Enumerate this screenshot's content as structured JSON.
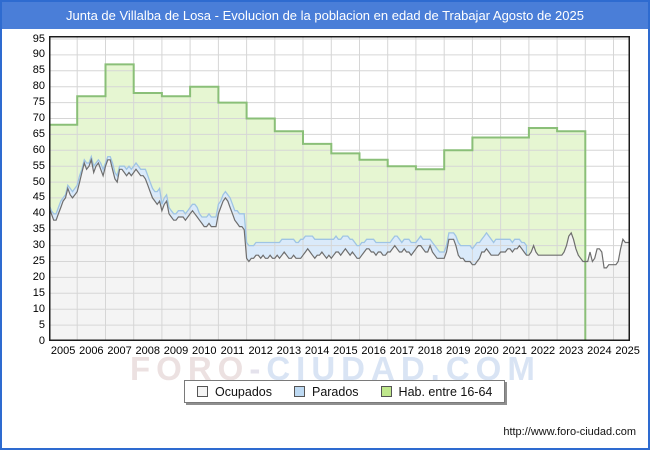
{
  "title": "Junta de Villalba de Losa - Evolucion de la poblacion en edad de Trabajar Agosto de 2025",
  "watermark": {
    "part1": "FORO",
    "separator": "-",
    "part2": "CIUDAD.COM"
  },
  "footer_url": "http://www.foro-ciudad.com",
  "colors": {
    "frame_border": "#2e6bd0",
    "titlebar_bg": "#4a7ed8",
    "titlebar_text": "#ffffff",
    "gridline": "#d6d6d6",
    "plot_border": "#1c1c1c",
    "ocupados_fill": "#f4f4f4",
    "ocupados_line": "#6e6e6e",
    "parados_fill": "#daeafa",
    "parados_line": "#9fc4e4",
    "hab_fill": "#e6f6d2",
    "hab_line": "#8abf78"
  },
  "legend": {
    "items": [
      {
        "label": "Ocupados",
        "swatch_color": "#f4f4f4"
      },
      {
        "label": "Parados",
        "swatch_color": "#bdd9f2"
      },
      {
        "label": "Hab. entre 16-64",
        "swatch_color": "#bfe78c"
      }
    ]
  },
  "chart_data": {
    "type": "area",
    "title": "Junta de Villalba de Losa - Evolucion de la poblacion en edad de Trabajar Agosto de 2025",
    "x_unit": "month",
    "x_start": "2005-01",
    "x_end": "2025-08",
    "x_tick_labels": [
      "2005",
      "2006",
      "2007",
      "2008",
      "2009",
      "2010",
      "2011",
      "2012",
      "2013",
      "2014",
      "2015",
      "2016",
      "2017",
      "2018",
      "2019",
      "2020",
      "2021",
      "2022",
      "2023",
      "2024",
      "2025"
    ],
    "y_ticks": [
      0,
      5,
      10,
      15,
      20,
      25,
      30,
      35,
      40,
      45,
      50,
      55,
      60,
      65,
      70,
      75,
      80,
      85,
      90,
      95
    ],
    "ylim": [
      0,
      96
    ],
    "grid": true,
    "legend_position": "bottom",
    "series": [
      {
        "name": "Ocupados",
        "render": "area",
        "start": "2005-01",
        "end": "2025-08",
        "values": [
          42,
          40,
          38,
          38,
          40,
          42,
          44,
          45,
          48,
          46,
          45,
          46,
          47,
          50,
          53,
          56,
          54,
          55,
          57,
          53,
          55,
          56,
          54,
          52,
          55,
          57,
          57,
          54,
          51,
          50,
          54,
          54,
          53,
          52,
          53,
          52,
          53,
          54,
          53,
          52,
          52,
          51,
          49,
          47,
          45,
          44,
          43,
          44,
          41,
          43,
          44,
          40,
          39,
          38,
          38,
          39,
          39,
          39,
          38,
          39,
          40,
          41,
          40,
          39,
          38,
          37,
          36,
          36,
          37,
          36,
          36,
          36,
          40,
          42,
          44,
          45,
          44,
          42,
          40,
          38,
          37,
          36,
          36,
          35,
          26,
          25,
          26,
          26,
          27,
          27,
          26,
          27,
          26,
          26,
          27,
          26,
          26,
          27,
          26,
          27,
          28,
          27,
          26,
          26,
          27,
          26,
          26,
          26,
          27,
          28,
          29,
          28,
          27,
          26,
          27,
          27,
          28,
          27,
          26,
          27,
          26,
          27,
          28,
          28,
          27,
          28,
          29,
          28,
          27,
          28,
          27,
          26,
          26,
          27,
          28,
          29,
          29,
          28,
          28,
          27,
          28,
          28,
          27,
          27,
          28,
          28,
          29,
          30,
          29,
          28,
          28,
          29,
          28,
          28,
          27,
          28,
          29,
          30,
          30,
          29,
          28,
          28,
          30,
          28,
          27,
          26,
          26,
          26,
          26,
          28,
          32,
          32,
          32,
          30,
          27,
          26,
          26,
          25,
          25,
          25,
          24,
          24,
          25,
          26,
          28,
          28,
          29,
          28,
          27,
          27,
          27,
          27,
          28,
          28,
          28,
          29,
          29,
          28,
          29,
          29,
          30,
          29,
          28,
          27,
          27,
          28,
          30,
          28,
          27,
          27,
          27,
          27,
          27,
          27,
          27,
          27,
          27,
          27,
          27,
          28,
          30,
          33,
          34,
          32,
          29,
          27,
          26,
          25,
          25,
          25,
          28,
          25,
          26,
          29,
          29,
          28,
          23,
          23,
          24,
          24,
          24,
          24,
          25,
          29,
          32,
          31,
          31,
          31
        ]
      },
      {
        "name": "Parados",
        "render": "area-stacked-on-ocupados",
        "start": "2005-01",
        "end": "2021-12",
        "values": [
          1,
          1,
          2,
          2,
          2,
          2,
          1,
          1,
          1,
          2,
          2,
          2,
          2,
          2,
          1,
          1,
          2,
          1,
          1,
          2,
          1,
          1,
          2,
          2,
          1,
          1,
          1,
          2,
          2,
          2,
          1,
          1,
          2,
          2,
          2,
          2,
          2,
          2,
          2,
          2,
          2,
          3,
          3,
          3,
          3,
          3,
          4,
          4,
          2,
          2,
          2,
          2,
          2,
          2,
          2,
          2,
          2,
          2,
          2,
          2,
          2,
          2,
          3,
          3,
          2,
          2,
          3,
          3,
          3,
          3,
          3,
          3,
          3,
          2,
          2,
          2,
          2,
          3,
          3,
          3,
          4,
          4,
          4,
          5,
          5,
          5,
          4,
          4,
          4,
          4,
          5,
          4,
          5,
          5,
          4,
          5,
          5,
          4,
          5,
          5,
          4,
          5,
          6,
          6,
          5,
          5,
          5,
          6,
          5,
          5,
          4,
          5,
          6,
          6,
          5,
          5,
          4,
          5,
          6,
          5,
          6,
          5,
          5,
          4,
          5,
          5,
          4,
          5,
          5,
          4,
          4,
          4,
          4,
          4,
          3,
          3,
          3,
          4,
          4,
          4,
          3,
          3,
          4,
          4,
          3,
          3,
          3,
          3,
          4,
          4,
          3,
          3,
          4,
          4,
          4,
          3,
          2,
          2,
          3,
          3,
          4,
          4,
          2,
          3,
          3,
          3,
          2,
          2,
          2,
          2,
          2,
          2,
          2,
          3,
          4,
          4,
          4,
          5,
          5,
          5,
          5,
          6,
          6,
          5,
          4,
          5,
          5,
          5,
          5,
          4,
          5,
          5,
          4,
          4,
          4,
          3,
          3,
          3,
          3,
          3,
          2,
          2,
          3,
          3
        ]
      },
      {
        "name": "Hab. entre 16-64",
        "render": "yearly-step",
        "start": "2005-01",
        "end": "2023-12",
        "years": [
          2005,
          2006,
          2007,
          2008,
          2009,
          2010,
          2011,
          2012,
          2013,
          2014,
          2015,
          2016,
          2017,
          2018,
          2019,
          2020,
          2021,
          2022,
          2023
        ],
        "values": [
          68,
          77,
          87,
          78,
          77,
          80,
          75,
          70,
          66,
          62,
          59,
          57,
          55,
          54,
          60,
          64,
          64,
          67,
          66
        ]
      }
    ]
  }
}
